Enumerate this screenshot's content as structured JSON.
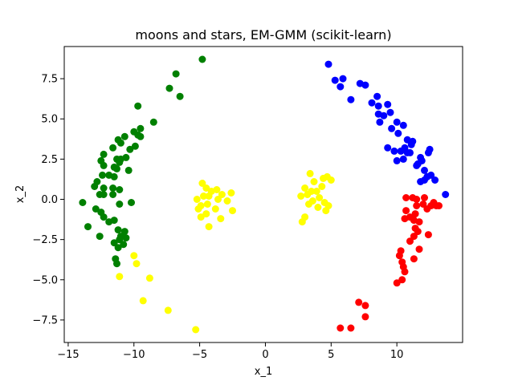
{
  "chart_data": {
    "type": "scatter",
    "title": "moons and stars, EM-GMM (scikit-learn)",
    "xlabel": "x_1",
    "ylabel": "x_2",
    "xlim": [
      -15.3,
      15.0
    ],
    "ylim": [
      -8.9,
      9.5
    ],
    "xticks": [
      -15,
      -10,
      -5,
      0,
      5,
      10
    ],
    "yticks": [
      -7.5,
      -5.0,
      -2.5,
      0.0,
      2.5,
      5.0,
      7.5
    ],
    "xtick_labels": [
      "−15",
      "−10",
      "−5",
      "0",
      "5",
      "10"
    ],
    "ytick_labels": [
      "−7.5",
      "−5.0",
      "−2.5",
      "0.0",
      "2.5",
      "5.0",
      "7.5"
    ],
    "grid": false,
    "series": [
      {
        "color": "#008000",
        "points": [
          [
            -4.8,
            8.7
          ],
          [
            -6.8,
            7.8
          ],
          [
            -7.3,
            6.9
          ],
          [
            -6.5,
            6.4
          ],
          [
            -9.7,
            5.8
          ],
          [
            -8.5,
            4.8
          ],
          [
            -9.5,
            4.4
          ],
          [
            -10.0,
            4.2
          ],
          [
            -9.7,
            4.0
          ],
          [
            -9.5,
            3.9
          ],
          [
            -10.7,
            3.9
          ],
          [
            -11.2,
            3.7
          ],
          [
            -11.0,
            3.5
          ],
          [
            -9.9,
            3.3
          ],
          [
            -10.3,
            3.1
          ],
          [
            -11.6,
            3.2
          ],
          [
            -12.3,
            2.8
          ],
          [
            -10.6,
            2.6
          ],
          [
            -11.3,
            2.5
          ],
          [
            -11.0,
            2.5
          ],
          [
            -11.1,
            2.3
          ],
          [
            -12.5,
            2.4
          ],
          [
            -12.3,
            2.1
          ],
          [
            -11.5,
            2.0
          ],
          [
            -11.3,
            1.9
          ],
          [
            -10.4,
            1.8
          ],
          [
            -12.4,
            1.5
          ],
          [
            -11.9,
            1.5
          ],
          [
            -11.5,
            1.4
          ],
          [
            -12.8,
            1.1
          ],
          [
            -13.0,
            0.8
          ],
          [
            -11.6,
            0.7
          ],
          [
            -12.3,
            0.7
          ],
          [
            -11.1,
            0.6
          ],
          [
            -12.6,
            0.3
          ],
          [
            -12.3,
            0.3
          ],
          [
            -11.6,
            0.3
          ],
          [
            -10.2,
            -0.2
          ],
          [
            -13.9,
            -0.2
          ],
          [
            -11.1,
            -0.3
          ],
          [
            -12.5,
            -0.8
          ],
          [
            -12.9,
            -0.6
          ],
          [
            -12.3,
            -1.1
          ],
          [
            -11.9,
            -1.4
          ],
          [
            -11.5,
            -1.3
          ],
          [
            -13.5,
            -1.7
          ],
          [
            -11.2,
            -1.9
          ],
          [
            -10.7,
            -2.0
          ],
          [
            -11.0,
            -2.3
          ],
          [
            -12.6,
            -2.3
          ],
          [
            -10.6,
            -2.4
          ],
          [
            -11.1,
            -2.5
          ],
          [
            -11.5,
            -2.7
          ],
          [
            -10.8,
            -2.8
          ],
          [
            -11.2,
            -3.0
          ],
          [
            -11.4,
            -3.7
          ],
          [
            -11.3,
            -4.0
          ]
        ]
      },
      {
        "color": "#ffff00",
        "points": [
          [
            -4.8,
            1.0
          ],
          [
            -4.5,
            0.7
          ],
          [
            -4.1,
            0.5
          ],
          [
            -3.7,
            0.6
          ],
          [
            -4.3,
            0.2
          ],
          [
            -4.7,
            0.2
          ],
          [
            -5.2,
            0.0
          ],
          [
            -3.3,
            0.3
          ],
          [
            -2.6,
            0.4
          ],
          [
            -3.6,
            0.0
          ],
          [
            -2.9,
            -0.1
          ],
          [
            -4.4,
            -0.3
          ],
          [
            -4.9,
            -0.4
          ],
          [
            -5.1,
            -0.6
          ],
          [
            -3.8,
            -0.6
          ],
          [
            -2.5,
            -0.7
          ],
          [
            -4.5,
            -0.9
          ],
          [
            -4.9,
            -1.1
          ],
          [
            -3.4,
            -1.2
          ],
          [
            -4.3,
            -1.7
          ],
          [
            3.4,
            1.6
          ],
          [
            4.4,
            1.3
          ],
          [
            4.7,
            1.4
          ],
          [
            5.0,
            1.2
          ],
          [
            3.7,
            1.1
          ],
          [
            4.3,
            0.8
          ],
          [
            3.0,
            0.7
          ],
          [
            3.5,
            0.5
          ],
          [
            3.9,
            0.5
          ],
          [
            3.2,
            0.3
          ],
          [
            2.7,
            0.2
          ],
          [
            4.1,
            0.1
          ],
          [
            3.6,
            -0.1
          ],
          [
            4.5,
            -0.2
          ],
          [
            3.3,
            -0.3
          ],
          [
            4.0,
            -0.5
          ],
          [
            4.8,
            -0.4
          ],
          [
            4.6,
            -0.7
          ],
          [
            3.0,
            -1.1
          ],
          [
            2.8,
            -1.4
          ],
          [
            -10.0,
            -3.5
          ],
          [
            -9.8,
            -4.0
          ],
          [
            -11.1,
            -4.8
          ],
          [
            -8.8,
            -4.9
          ],
          [
            -9.3,
            -6.3
          ],
          [
            -7.4,
            -6.9
          ],
          [
            -5.3,
            -8.1
          ]
        ]
      },
      {
        "color": "#0000ff",
        "points": [
          [
            4.8,
            8.4
          ],
          [
            5.9,
            7.5
          ],
          [
            5.3,
            7.4
          ],
          [
            5.7,
            7.0
          ],
          [
            7.2,
            7.2
          ],
          [
            7.6,
            7.1
          ],
          [
            6.5,
            6.2
          ],
          [
            8.5,
            6.4
          ],
          [
            8.1,
            6.0
          ],
          [
            8.6,
            5.8
          ],
          [
            9.3,
            5.9
          ],
          [
            9.5,
            5.4
          ],
          [
            8.6,
            5.3
          ],
          [
            9.0,
            5.2
          ],
          [
            8.7,
            4.8
          ],
          [
            10.0,
            4.8
          ],
          [
            10.5,
            4.6
          ],
          [
            9.6,
            4.4
          ],
          [
            10.1,
            4.1
          ],
          [
            10.8,
            3.7
          ],
          [
            11.2,
            3.6
          ],
          [
            11.1,
            3.4
          ],
          [
            10.6,
            3.2
          ],
          [
            9.3,
            3.2
          ],
          [
            9.8,
            3.0
          ],
          [
            10.3,
            3.0
          ],
          [
            11.0,
            2.9
          ],
          [
            10.8,
            2.9
          ],
          [
            12.5,
            3.1
          ],
          [
            12.4,
            2.9
          ],
          [
            11.8,
            2.6
          ],
          [
            11.9,
            2.4
          ],
          [
            11.6,
            2.2
          ],
          [
            11.5,
            2.1
          ],
          [
            10.5,
            2.5
          ],
          [
            10.0,
            2.4
          ],
          [
            12.1,
            1.8
          ],
          [
            12.6,
            1.5
          ],
          [
            12.3,
            1.4
          ],
          [
            12.1,
            1.2
          ],
          [
            11.8,
            1.1
          ],
          [
            12.9,
            1.2
          ],
          [
            13.7,
            0.3
          ]
        ]
      },
      {
        "color": "#ff0000",
        "points": [
          [
            10.7,
            0.1
          ],
          [
            11.2,
            0.1
          ],
          [
            11.5,
            0.0
          ],
          [
            12.1,
            0.1
          ],
          [
            12.8,
            -0.2
          ],
          [
            12.6,
            -0.4
          ],
          [
            12.0,
            -0.3
          ],
          [
            11.5,
            -0.4
          ],
          [
            13.2,
            -0.4
          ],
          [
            13.0,
            -0.4
          ],
          [
            12.3,
            -0.6
          ],
          [
            10.7,
            -0.7
          ],
          [
            11.0,
            -1.1
          ],
          [
            11.4,
            -0.9
          ],
          [
            10.6,
            -1.2
          ],
          [
            11.3,
            -1.3
          ],
          [
            11.7,
            -1.4
          ],
          [
            11.4,
            -1.8
          ],
          [
            11.6,
            -2.0
          ],
          [
            12.4,
            -2.2
          ],
          [
            11.3,
            -2.3
          ],
          [
            11.0,
            -2.6
          ],
          [
            11.7,
            -3.1
          ],
          [
            10.3,
            -3.2
          ],
          [
            10.2,
            -3.5
          ],
          [
            11.3,
            -3.7
          ],
          [
            10.4,
            -3.9
          ],
          [
            10.5,
            -4.2
          ],
          [
            10.6,
            -4.5
          ],
          [
            10.4,
            -5.0
          ],
          [
            10.0,
            -5.2
          ],
          [
            7.1,
            -6.4
          ],
          [
            7.6,
            -6.6
          ],
          [
            7.6,
            -7.3
          ],
          [
            5.7,
            -8.0
          ],
          [
            6.5,
            -8.0
          ]
        ]
      }
    ]
  }
}
